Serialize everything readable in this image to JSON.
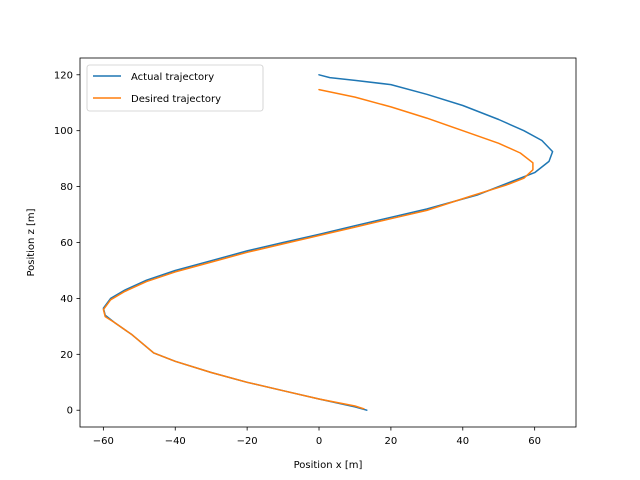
{
  "chart_data": {
    "type": "line",
    "title": "",
    "xlabel": "Position x [m]",
    "ylabel": "Position z [m]",
    "xlim": [
      -66.5,
      71.5
    ],
    "ylim": [
      -6,
      126
    ],
    "xticks": [
      -60,
      -40,
      -20,
      0,
      20,
      40,
      60
    ],
    "xtick_labels": [
      "−60",
      "−40",
      "−20",
      "0",
      "20",
      "40",
      "60"
    ],
    "yticks": [
      0,
      20,
      40,
      60,
      80,
      100,
      120
    ],
    "ytick_labels": [
      "0",
      "20",
      "40",
      "60",
      "80",
      "100",
      "120"
    ],
    "grid": false,
    "legend_position": "top-left",
    "series": [
      {
        "name": "Actual trajectory",
        "color": "#1f77b4",
        "points": [
          [
            0,
            120
          ],
          [
            3,
            119
          ],
          [
            10,
            118
          ],
          [
            20,
            116.5
          ],
          [
            30,
            113
          ],
          [
            40,
            109
          ],
          [
            50,
            104
          ],
          [
            57,
            100
          ],
          [
            62,
            96.5
          ],
          [
            65,
            92.5
          ],
          [
            64,
            89
          ],
          [
            60,
            85
          ],
          [
            54,
            82
          ],
          [
            44,
            77
          ],
          [
            30,
            72
          ],
          [
            20,
            69
          ],
          [
            10,
            66
          ],
          [
            0,
            62.9
          ],
          [
            -10,
            60
          ],
          [
            -20,
            57
          ],
          [
            -30,
            53.5
          ],
          [
            -40,
            50
          ],
          [
            -48,
            46.5
          ],
          [
            -54,
            43
          ],
          [
            -58,
            40
          ],
          [
            -60,
            36.5
          ],
          [
            -59.5,
            34
          ],
          [
            -57,
            31.5
          ],
          [
            -52,
            27
          ],
          [
            -46,
            20.5
          ],
          [
            -40,
            17.5
          ],
          [
            -30,
            13.5
          ],
          [
            -20,
            10
          ],
          [
            -10,
            7
          ],
          [
            0,
            4
          ],
          [
            10,
            1.2
          ],
          [
            13.3,
            0
          ]
        ]
      },
      {
        "name": "Desired trajectory",
        "color": "#ff7f0e",
        "points": [
          [
            0,
            114.7
          ],
          [
            10,
            112
          ],
          [
            20,
            108.5
          ],
          [
            30,
            104.5
          ],
          [
            40,
            100
          ],
          [
            50,
            95.5
          ],
          [
            56,
            92
          ],
          [
            59.5,
            88.5
          ],
          [
            59.5,
            86
          ],
          [
            57,
            83
          ],
          [
            52,
            80.5
          ],
          [
            42,
            76.5
          ],
          [
            30,
            71.5
          ],
          [
            20,
            68.5
          ],
          [
            10,
            65.5
          ],
          [
            0,
            62.5
          ],
          [
            -10,
            59.5
          ],
          [
            -20,
            56.5
          ],
          [
            -30,
            53
          ],
          [
            -40,
            49.5
          ],
          [
            -48,
            46
          ],
          [
            -54,
            42.5
          ],
          [
            -58,
            39.5
          ],
          [
            -60,
            36
          ],
          [
            -59.5,
            33.5
          ],
          [
            -57,
            31.5
          ],
          [
            -52,
            27
          ],
          [
            -46,
            20.5
          ],
          [
            -40,
            17.5
          ],
          [
            -30,
            13.5
          ],
          [
            -20,
            10
          ],
          [
            -10,
            7
          ],
          [
            0,
            4
          ],
          [
            10,
            1.5
          ],
          [
            12.5,
            0.5
          ]
        ]
      }
    ]
  }
}
